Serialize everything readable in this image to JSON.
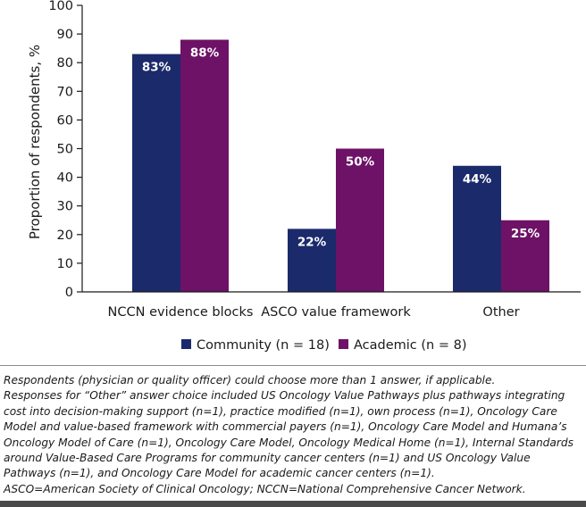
{
  "chart_data": {
    "type": "bar",
    "title": "",
    "xlabel": "",
    "ylabel": "Proportion of respondents, %",
    "ylim": [
      0,
      100
    ],
    "yticks": [
      0,
      10,
      20,
      30,
      40,
      50,
      60,
      70,
      80,
      90,
      100
    ],
    "grid": false,
    "legend_position": "bottom",
    "categories": [
      "NCCN evidence blocks",
      "ASCO value framework",
      "Other"
    ],
    "series": [
      {
        "name": "Community (n = 18)",
        "values": [
          83,
          22,
          44
        ],
        "labels": [
          "83%",
          "22%",
          "44%"
        ],
        "color": "#1b2a6b"
      },
      {
        "name": "Academic (n = 8)",
        "values": [
          88,
          50,
          25
        ],
        "labels": [
          "88%",
          "50%",
          "25%"
        ],
        "color": "#6d1266"
      }
    ],
    "label_color": "#ffffff",
    "axis_color": "#1a1a1a"
  },
  "footnotes": [
    "Respondents (physician or quality officer) could choose more than 1 answer, if applicable.",
    "Responses for “Other” answer choice included US Oncology Value Pathways plus pathways integrating cost into decision-making support (n=1), practice modified (n=1), own process (n=1), Oncology Care Model and value-based framework with commercial payers (n=1), Oncology Care Model and Humana’s Oncology Model of Care (n=1), Oncology Care Model, Oncology Medical Home (n=1), Internal Standards around Value-Based Care Programs for community cancer centers (n=1) and US Oncology Value Pathways (n=1), and Oncology Care Model for academic cancer centers (n=1).",
    "ASCO=American Society of Clinical Oncology; NCCN=National Comprehensive Cancer Network."
  ]
}
